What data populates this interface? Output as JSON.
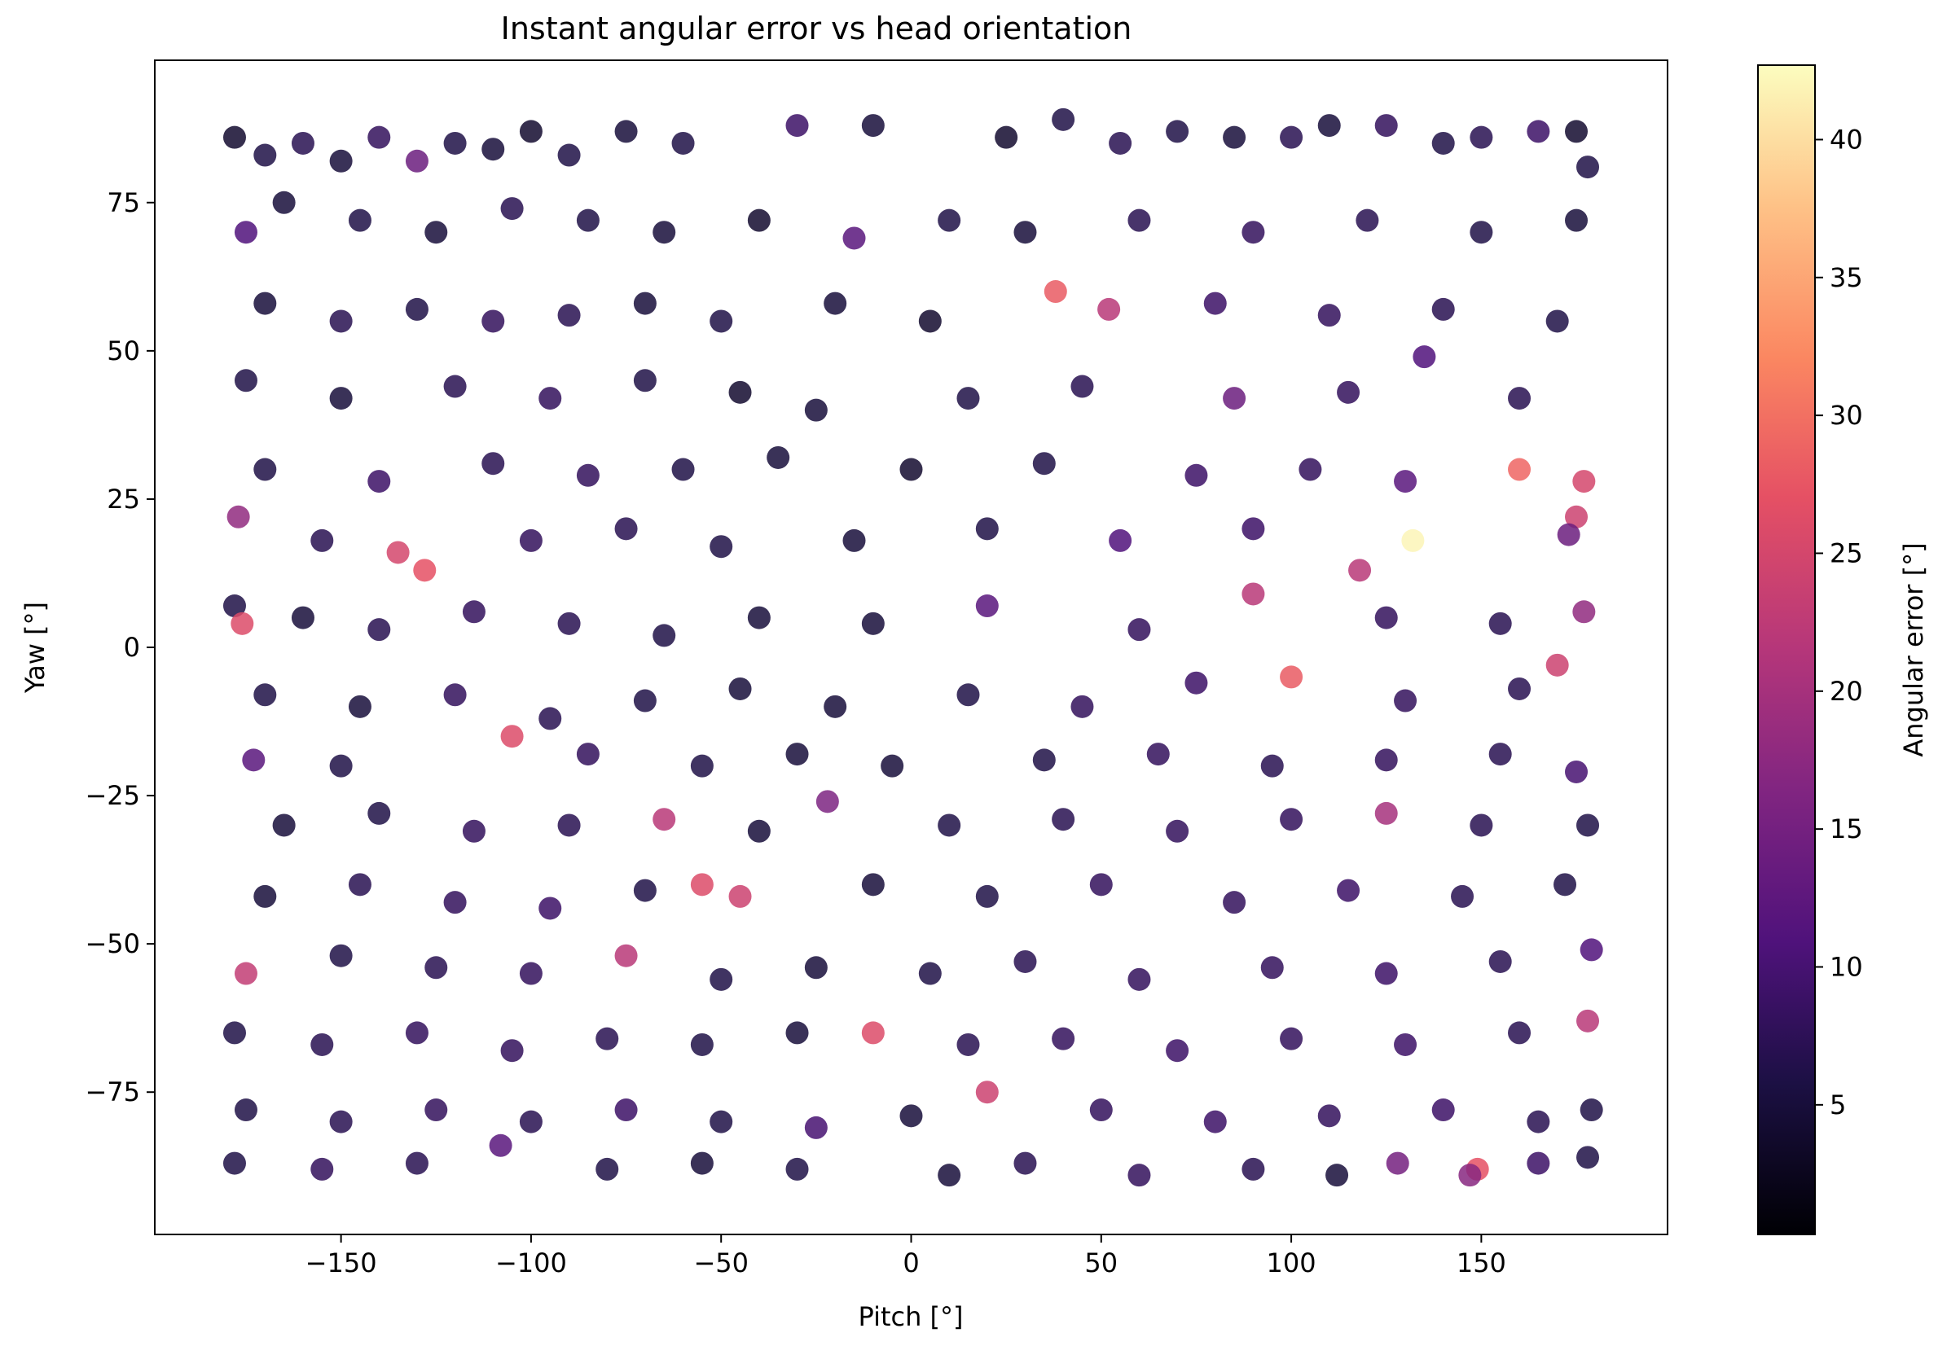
{
  "chart_data": {
    "type": "scatter",
    "title": "Instant angular error vs head orientation",
    "xlabel": "Pitch [°]",
    "ylabel": "Yaw [°]",
    "xlim": [
      -199,
      199
    ],
    "ylim": [
      -99,
      99
    ],
    "xticks": [
      -150,
      -100,
      -50,
      0,
      50,
      100,
      150
    ],
    "xtick_labels": [
      "−150",
      "−100",
      "−50",
      "0",
      "50",
      "100",
      "150"
    ],
    "yticks": [
      -75,
      -50,
      -25,
      0,
      25,
      50,
      75
    ],
    "ytick_labels": [
      "−75",
      "−50",
      "−25",
      "0",
      "25",
      "50",
      "75"
    ],
    "colorbar": {
      "label": "Angular error [°]",
      "colormap": "magma",
      "range": [
        0.3,
        42.7
      ],
      "ticks": [
        5,
        10,
        15,
        20,
        25,
        30,
        35,
        40
      ],
      "tick_labels": [
        "5",
        "10",
        "15",
        "20",
        "25",
        "30",
        "35",
        "40"
      ]
    },
    "marker_alpha": 0.85,
    "grid": false,
    "legend": "none",
    "points": [
      {
        "x": -178,
        "y": 86,
        "c": 4
      },
      {
        "x": -170,
        "y": 83,
        "c": 6
      },
      {
        "x": -160,
        "y": 85,
        "c": 7
      },
      {
        "x": -150,
        "y": 82,
        "c": 5
      },
      {
        "x": -140,
        "y": 86,
        "c": 8
      },
      {
        "x": -130,
        "y": 82,
        "c": 14
      },
      {
        "x": -120,
        "y": 85,
        "c": 6
      },
      {
        "x": -110,
        "y": 84,
        "c": 5
      },
      {
        "x": -100,
        "y": 87,
        "c": 4
      },
      {
        "x": -90,
        "y": 83,
        "c": 6
      },
      {
        "x": -75,
        "y": 87,
        "c": 5
      },
      {
        "x": -60,
        "y": 85,
        "c": 6
      },
      {
        "x": -30,
        "y": 88,
        "c": 9
      },
      {
        "x": -10,
        "y": 88,
        "c": 5
      },
      {
        "x": 25,
        "y": 86,
        "c": 4
      },
      {
        "x": 40,
        "y": 89,
        "c": 6
      },
      {
        "x": 55,
        "y": 85,
        "c": 7
      },
      {
        "x": 70,
        "y": 87,
        "c": 6
      },
      {
        "x": 85,
        "y": 86,
        "c": 5
      },
      {
        "x": 100,
        "y": 86,
        "c": 7
      },
      {
        "x": 110,
        "y": 88,
        "c": 5
      },
      {
        "x": 125,
        "y": 88,
        "c": 8
      },
      {
        "x": 140,
        "y": 85,
        "c": 6
      },
      {
        "x": 150,
        "y": 86,
        "c": 7
      },
      {
        "x": 165,
        "y": 87,
        "c": 9
      },
      {
        "x": 175,
        "y": 87,
        "c": 4
      },
      {
        "x": 178,
        "y": 81,
        "c": 6
      },
      {
        "x": -175,
        "y": 70,
        "c": 11
      },
      {
        "x": -165,
        "y": 75,
        "c": 5
      },
      {
        "x": -145,
        "y": 72,
        "c": 6
      },
      {
        "x": -125,
        "y": 70,
        "c": 5
      },
      {
        "x": -105,
        "y": 74,
        "c": 7
      },
      {
        "x": -85,
        "y": 72,
        "c": 6
      },
      {
        "x": -65,
        "y": 70,
        "c": 5
      },
      {
        "x": -40,
        "y": 72,
        "c": 4
      },
      {
        "x": -15,
        "y": 69,
        "c": 12
      },
      {
        "x": 10,
        "y": 72,
        "c": 6
      },
      {
        "x": 30,
        "y": 70,
        "c": 5
      },
      {
        "x": 60,
        "y": 72,
        "c": 7
      },
      {
        "x": 90,
        "y": 70,
        "c": 8
      },
      {
        "x": 120,
        "y": 72,
        "c": 7
      },
      {
        "x": 150,
        "y": 70,
        "c": 6
      },
      {
        "x": 175,
        "y": 72,
        "c": 5
      },
      {
        "x": -170,
        "y": 58,
        "c": 5
      },
      {
        "x": -150,
        "y": 55,
        "c": 7
      },
      {
        "x": -130,
        "y": 57,
        "c": 6
      },
      {
        "x": -110,
        "y": 55,
        "c": 8
      },
      {
        "x": -90,
        "y": 56,
        "c": 7
      },
      {
        "x": -70,
        "y": 58,
        "c": 5
      },
      {
        "x": -50,
        "y": 55,
        "c": 6
      },
      {
        "x": -20,
        "y": 58,
        "c": 5
      },
      {
        "x": 5,
        "y": 55,
        "c": 4
      },
      {
        "x": 38,
        "y": 60,
        "c": 28
      },
      {
        "x": 52,
        "y": 57,
        "c": 22
      },
      {
        "x": 80,
        "y": 58,
        "c": 9
      },
      {
        "x": 110,
        "y": 56,
        "c": 8
      },
      {
        "x": 140,
        "y": 57,
        "c": 7
      },
      {
        "x": 170,
        "y": 55,
        "c": 6
      },
      {
        "x": -175,
        "y": 45,
        "c": 6
      },
      {
        "x": -150,
        "y": 42,
        "c": 5
      },
      {
        "x": -120,
        "y": 44,
        "c": 7
      },
      {
        "x": -95,
        "y": 42,
        "c": 8
      },
      {
        "x": -70,
        "y": 45,
        "c": 6
      },
      {
        "x": -45,
        "y": 43,
        "c": 4
      },
      {
        "x": -25,
        "y": 40,
        "c": 5
      },
      {
        "x": 15,
        "y": 42,
        "c": 6
      },
      {
        "x": 45,
        "y": 44,
        "c": 7
      },
      {
        "x": 85,
        "y": 42,
        "c": 14
      },
      {
        "x": 115,
        "y": 43,
        "c": 8
      },
      {
        "x": 135,
        "y": 49,
        "c": 11
      },
      {
        "x": 160,
        "y": 42,
        "c": 7
      },
      {
        "x": -170,
        "y": 30,
        "c": 6
      },
      {
        "x": -140,
        "y": 28,
        "c": 9
      },
      {
        "x": -110,
        "y": 31,
        "c": 7
      },
      {
        "x": -85,
        "y": 29,
        "c": 8
      },
      {
        "x": -60,
        "y": 30,
        "c": 6
      },
      {
        "x": -35,
        "y": 32,
        "c": 5
      },
      {
        "x": 0,
        "y": 30,
        "c": 4
      },
      {
        "x": 35,
        "y": 31,
        "c": 6
      },
      {
        "x": 75,
        "y": 29,
        "c": 9
      },
      {
        "x": 105,
        "y": 30,
        "c": 8
      },
      {
        "x": 130,
        "y": 28,
        "c": 12
      },
      {
        "x": 160,
        "y": 30,
        "c": 29
      },
      {
        "x": 177,
        "y": 28,
        "c": 25
      },
      {
        "x": -177,
        "y": 22,
        "c": 18
      },
      {
        "x": -155,
        "y": 18,
        "c": 7
      },
      {
        "x": -135,
        "y": 16,
        "c": 25
      },
      {
        "x": -128,
        "y": 13,
        "c": 27
      },
      {
        "x": -100,
        "y": 18,
        "c": 8
      },
      {
        "x": -75,
        "y": 20,
        "c": 7
      },
      {
        "x": -50,
        "y": 17,
        "c": 6
      },
      {
        "x": -15,
        "y": 18,
        "c": 5
      },
      {
        "x": 20,
        "y": 20,
        "c": 6
      },
      {
        "x": 55,
        "y": 18,
        "c": 11
      },
      {
        "x": 90,
        "y": 20,
        "c": 9
      },
      {
        "x": 118,
        "y": 13,
        "c": 22
      },
      {
        "x": 132,
        "y": 18,
        "c": 42
      },
      {
        "x": 175,
        "y": 22,
        "c": 24
      },
      {
        "x": 173,
        "y": 19,
        "c": 14
      },
      {
        "x": -178,
        "y": 7,
        "c": 6
      },
      {
        "x": -160,
        "y": 5,
        "c": 5
      },
      {
        "x": -140,
        "y": 3,
        "c": 7
      },
      {
        "x": -115,
        "y": 6,
        "c": 8
      },
      {
        "x": -90,
        "y": 4,
        "c": 7
      },
      {
        "x": -65,
        "y": 2,
        "c": 6
      },
      {
        "x": -40,
        "y": 5,
        "c": 5
      },
      {
        "x": -10,
        "y": 4,
        "c": 5
      },
      {
        "x": 20,
        "y": 7,
        "c": 12
      },
      {
        "x": 60,
        "y": 3,
        "c": 8
      },
      {
        "x": 90,
        "y": 9,
        "c": 22
      },
      {
        "x": 125,
        "y": 5,
        "c": 8
      },
      {
        "x": 155,
        "y": 4,
        "c": 7
      },
      {
        "x": 177,
        "y": 6,
        "c": 18
      },
      {
        "x": -176,
        "y": 4,
        "c": 26
      },
      {
        "x": -170,
        "y": -8,
        "c": 6
      },
      {
        "x": -145,
        "y": -10,
        "c": 5
      },
      {
        "x": -120,
        "y": -8,
        "c": 8
      },
      {
        "x": -95,
        "y": -12,
        "c": 7
      },
      {
        "x": -70,
        "y": -9,
        "c": 6
      },
      {
        "x": -45,
        "y": -7,
        "c": 5
      },
      {
        "x": -20,
        "y": -10,
        "c": 5
      },
      {
        "x": 15,
        "y": -8,
        "c": 6
      },
      {
        "x": 45,
        "y": -10,
        "c": 8
      },
      {
        "x": 75,
        "y": -6,
        "c": 9
      },
      {
        "x": 100,
        "y": -5,
        "c": 28
      },
      {
        "x": 130,
        "y": -9,
        "c": 8
      },
      {
        "x": 160,
        "y": -7,
        "c": 7
      },
      {
        "x": 170,
        "y": -3,
        "c": 24
      },
      {
        "x": -173,
        "y": -19,
        "c": 12
      },
      {
        "x": -150,
        "y": -20,
        "c": 6
      },
      {
        "x": -105,
        "y": -15,
        "c": 26
      },
      {
        "x": -85,
        "y": -18,
        "c": 8
      },
      {
        "x": -55,
        "y": -20,
        "c": 6
      },
      {
        "x": -30,
        "y": -18,
        "c": 5
      },
      {
        "x": -5,
        "y": -20,
        "c": 5
      },
      {
        "x": 35,
        "y": -19,
        "c": 6
      },
      {
        "x": 65,
        "y": -18,
        "c": 8
      },
      {
        "x": 95,
        "y": -20,
        "c": 7
      },
      {
        "x": 125,
        "y": -19,
        "c": 8
      },
      {
        "x": 155,
        "y": -18,
        "c": 7
      },
      {
        "x": 175,
        "y": -21,
        "c": 10
      },
      {
        "x": -165,
        "y": -30,
        "c": 5
      },
      {
        "x": -140,
        "y": -28,
        "c": 6
      },
      {
        "x": -115,
        "y": -31,
        "c": 8
      },
      {
        "x": -90,
        "y": -30,
        "c": 7
      },
      {
        "x": -65,
        "y": -29,
        "c": 22
      },
      {
        "x": -40,
        "y": -31,
        "c": 5
      },
      {
        "x": -22,
        "y": -26,
        "c": 16
      },
      {
        "x": 10,
        "y": -30,
        "c": 6
      },
      {
        "x": 40,
        "y": -29,
        "c": 7
      },
      {
        "x": 70,
        "y": -31,
        "c": 8
      },
      {
        "x": 100,
        "y": -29,
        "c": 8
      },
      {
        "x": 125,
        "y": -28,
        "c": 20
      },
      {
        "x": 150,
        "y": -30,
        "c": 7
      },
      {
        "x": 178,
        "y": -30,
        "c": 6
      },
      {
        "x": -170,
        "y": -42,
        "c": 5
      },
      {
        "x": -145,
        "y": -40,
        "c": 7
      },
      {
        "x": -120,
        "y": -43,
        "c": 8
      },
      {
        "x": -95,
        "y": -44,
        "c": 9
      },
      {
        "x": -70,
        "y": -41,
        "c": 6
      },
      {
        "x": -55,
        "y": -40,
        "c": 26
      },
      {
        "x": -45,
        "y": -42,
        "c": 24
      },
      {
        "x": -10,
        "y": -40,
        "c": 5
      },
      {
        "x": 20,
        "y": -42,
        "c": 6
      },
      {
        "x": 50,
        "y": -40,
        "c": 8
      },
      {
        "x": 85,
        "y": -43,
        "c": 8
      },
      {
        "x": 115,
        "y": -41,
        "c": 9
      },
      {
        "x": 145,
        "y": -42,
        "c": 7
      },
      {
        "x": 172,
        "y": -40,
        "c": 6
      },
      {
        "x": -175,
        "y": -55,
        "c": 23
      },
      {
        "x": -150,
        "y": -52,
        "c": 6
      },
      {
        "x": -125,
        "y": -54,
        "c": 7
      },
      {
        "x": -100,
        "y": -55,
        "c": 8
      },
      {
        "x": -75,
        "y": -52,
        "c": 22
      },
      {
        "x": -50,
        "y": -56,
        "c": 6
      },
      {
        "x": -25,
        "y": -54,
        "c": 5
      },
      {
        "x": 5,
        "y": -55,
        "c": 6
      },
      {
        "x": 30,
        "y": -53,
        "c": 7
      },
      {
        "x": 60,
        "y": -56,
        "c": 8
      },
      {
        "x": 95,
        "y": -54,
        "c": 8
      },
      {
        "x": 125,
        "y": -55,
        "c": 9
      },
      {
        "x": 155,
        "y": -53,
        "c": 7
      },
      {
        "x": 179,
        "y": -51,
        "c": 11
      },
      {
        "x": -178,
        "y": -65,
        "c": 6
      },
      {
        "x": -155,
        "y": -67,
        "c": 7
      },
      {
        "x": -130,
        "y": -65,
        "c": 8
      },
      {
        "x": -105,
        "y": -68,
        "c": 8
      },
      {
        "x": -80,
        "y": -66,
        "c": 7
      },
      {
        "x": -55,
        "y": -67,
        "c": 6
      },
      {
        "x": -30,
        "y": -65,
        "c": 5
      },
      {
        "x": -10,
        "y": -65,
        "c": 26
      },
      {
        "x": 15,
        "y": -67,
        "c": 7
      },
      {
        "x": 40,
        "y": -66,
        "c": 8
      },
      {
        "x": 70,
        "y": -68,
        "c": 9
      },
      {
        "x": 100,
        "y": -66,
        "c": 8
      },
      {
        "x": 130,
        "y": -67,
        "c": 9
      },
      {
        "x": 160,
        "y": -65,
        "c": 7
      },
      {
        "x": 178,
        "y": -63,
        "c": 22
      },
      {
        "x": -175,
        "y": -78,
        "c": 6
      },
      {
        "x": -150,
        "y": -80,
        "c": 7
      },
      {
        "x": -125,
        "y": -78,
        "c": 8
      },
      {
        "x": -100,
        "y": -80,
        "c": 7
      },
      {
        "x": -75,
        "y": -78,
        "c": 9
      },
      {
        "x": -50,
        "y": -80,
        "c": 6
      },
      {
        "x": -25,
        "y": -81,
        "c": 10
      },
      {
        "x": 0,
        "y": -79,
        "c": 5
      },
      {
        "x": 20,
        "y": -75,
        "c": 24
      },
      {
        "x": 50,
        "y": -78,
        "c": 8
      },
      {
        "x": 80,
        "y": -80,
        "c": 9
      },
      {
        "x": 110,
        "y": -79,
        "c": 8
      },
      {
        "x": 140,
        "y": -78,
        "c": 9
      },
      {
        "x": 165,
        "y": -80,
        "c": 7
      },
      {
        "x": 179,
        "y": -78,
        "c": 6
      },
      {
        "x": -178,
        "y": -87,
        "c": 6
      },
      {
        "x": -155,
        "y": -88,
        "c": 8
      },
      {
        "x": -130,
        "y": -87,
        "c": 7
      },
      {
        "x": -108,
        "y": -84,
        "c": 12
      },
      {
        "x": -80,
        "y": -88,
        "c": 6
      },
      {
        "x": -55,
        "y": -87,
        "c": 5
      },
      {
        "x": -30,
        "y": -88,
        "c": 6
      },
      {
        "x": 10,
        "y": -89,
        "c": 5
      },
      {
        "x": 30,
        "y": -87,
        "c": 7
      },
      {
        "x": 60,
        "y": -89,
        "c": 8
      },
      {
        "x": 90,
        "y": -88,
        "c": 7
      },
      {
        "x": 112,
        "y": -89,
        "c": 5
      },
      {
        "x": 128,
        "y": -87,
        "c": 15
      },
      {
        "x": 149,
        "y": -88,
        "c": 27
      },
      {
        "x": 147,
        "y": -89,
        "c": 17
      },
      {
        "x": 165,
        "y": -87,
        "c": 9
      },
      {
        "x": 178,
        "y": -86,
        "c": 6
      }
    ]
  }
}
